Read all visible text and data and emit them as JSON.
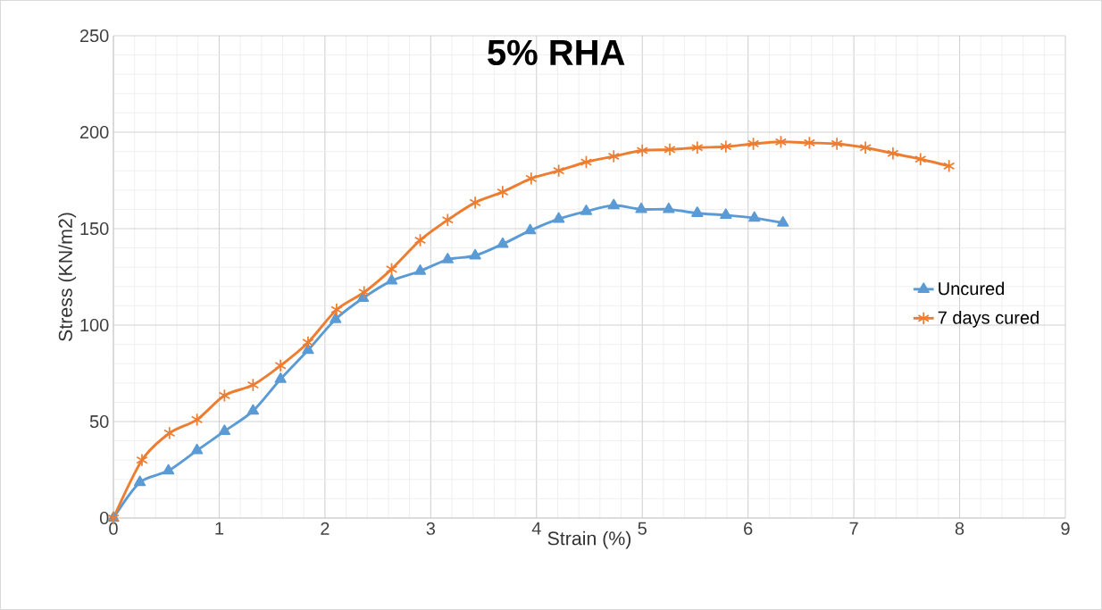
{
  "chart_data": {
    "type": "line",
    "title": "**5% RHA**",
    "xlabel": "Strain (%)",
    "ylabel": "Stress (KN/m2)",
    "xlim": [
      0,
      9
    ],
    "ylim": [
      0,
      250
    ],
    "xticks": [
      0,
      1,
      2,
      3,
      4,
      5,
      6,
      7,
      8,
      9
    ],
    "yticks": [
      0,
      50,
      100,
      150,
      200,
      250
    ],
    "grid": true,
    "legend": "right",
    "series": [
      {
        "name": "Uncured",
        "color": "#5b9bd5",
        "marker": "triangle",
        "x": [
          0,
          0.25,
          0.52,
          0.79,
          1.05,
          1.32,
          1.58,
          1.84,
          2.1,
          2.36,
          2.63,
          2.9,
          3.16,
          3.42,
          3.68,
          3.94,
          4.21,
          4.47,
          4.73,
          4.99,
          5.25,
          5.52,
          5.79,
          6.06,
          6.33
        ],
        "values": [
          0,
          18.5,
          24.5,
          35,
          45,
          55.5,
          72,
          87,
          103,
          114,
          123,
          128,
          134,
          136,
          142,
          149,
          155,
          159,
          162,
          160,
          160,
          158,
          157,
          155.5,
          153
        ]
      },
      {
        "name": "7 days cured",
        "color": "#ed7d31",
        "marker": "cross",
        "x": [
          0,
          0.27,
          0.53,
          0.79,
          1.05,
          1.32,
          1.58,
          1.84,
          2.11,
          2.37,
          2.63,
          2.9,
          3.16,
          3.42,
          3.68,
          3.95,
          4.21,
          4.47,
          4.73,
          5.0,
          5.26,
          5.52,
          5.79,
          6.05,
          6.31,
          6.58,
          6.84,
          7.11,
          7.37,
          7.63,
          7.9
        ],
        "values": [
          0,
          30,
          44,
          51,
          63.5,
          69,
          79,
          91,
          108,
          117,
          129,
          144,
          154.5,
          163.5,
          169,
          176,
          180,
          184.5,
          187.5,
          190.5,
          191,
          192,
          192.5,
          194,
          195,
          194.5,
          194,
          192,
          189,
          186,
          182.5
        ]
      }
    ]
  }
}
